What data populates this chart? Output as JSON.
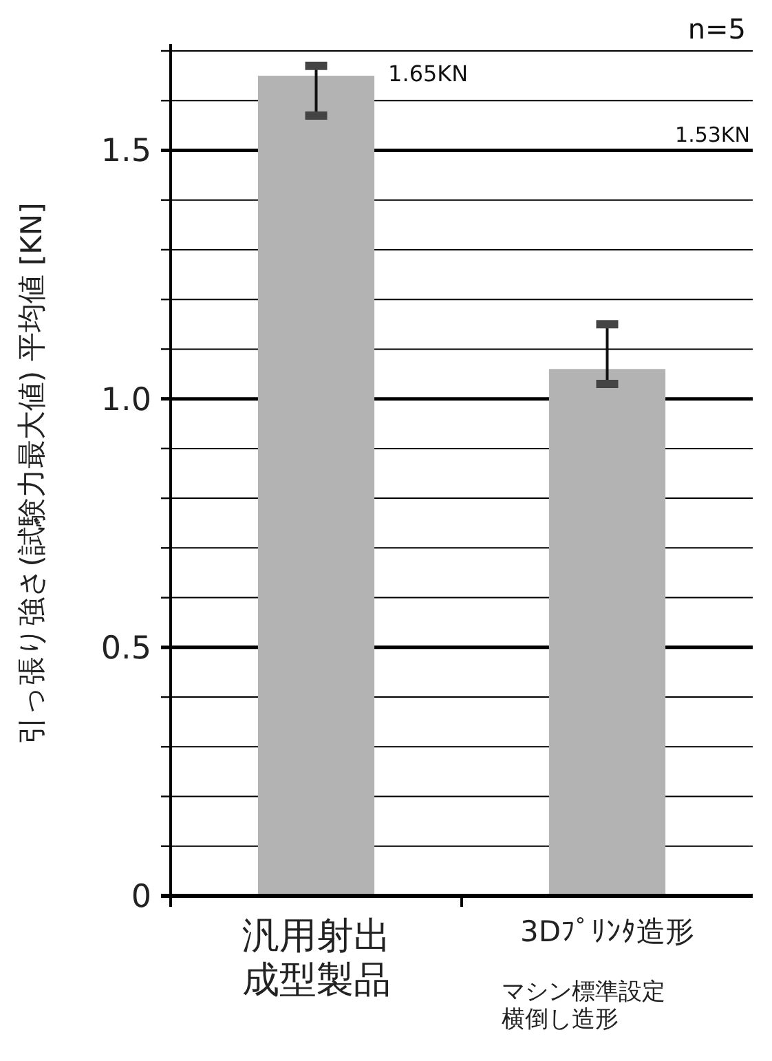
{
  "chart_data": {
    "type": "bar",
    "ylabel": "引っ張り強さ(試験力最大値) 平均値 [KN]",
    "categories": [
      "汎用射出成型製品",
      "3Dﾌﾟﾘﾝﾀ造形"
    ],
    "values": [
      1.65,
      1.06
    ],
    "errors": [
      [
        1.57,
        1.67
      ],
      [
        1.03,
        1.15
      ]
    ],
    "color": "#b3b3b3",
    "ylim": [
      0,
      1.7
    ],
    "yticks": [
      0,
      {
        "value": 0.1,
        "label": null
      },
      {
        "value": 0.2,
        "label": null
      },
      {
        "value": 0.3,
        "label": null
      },
      {
        "value": 0.4,
        "label": null
      },
      {
        "value": 0.5,
        "label": "0.5"
      },
      {
        "value": 0.6,
        "label": null
      },
      {
        "value": 0.7,
        "label": null
      },
      {
        "value": 0.8,
        "label": null
      },
      {
        "value": 0.9,
        "label": null
      },
      {
        "value": 1.0,
        "label": "1.0"
      },
      {
        "value": 1.1,
        "label": null
      },
      {
        "value": 1.2,
        "label": null
      },
      {
        "value": 1.3,
        "label": null
      },
      {
        "value": 1.4,
        "label": null
      },
      {
        "value": 1.5,
        "label": "1.5"
      },
      {
        "value": 1.6,
        "label": null
      },
      {
        "value": 1.7,
        "label": null
      }
    ],
    "grid": "y",
    "annotations": [
      "n=5",
      "1.65KN",
      "1.53KN",
      "マシン標準設定横倒し造形"
    ]
  }
}
